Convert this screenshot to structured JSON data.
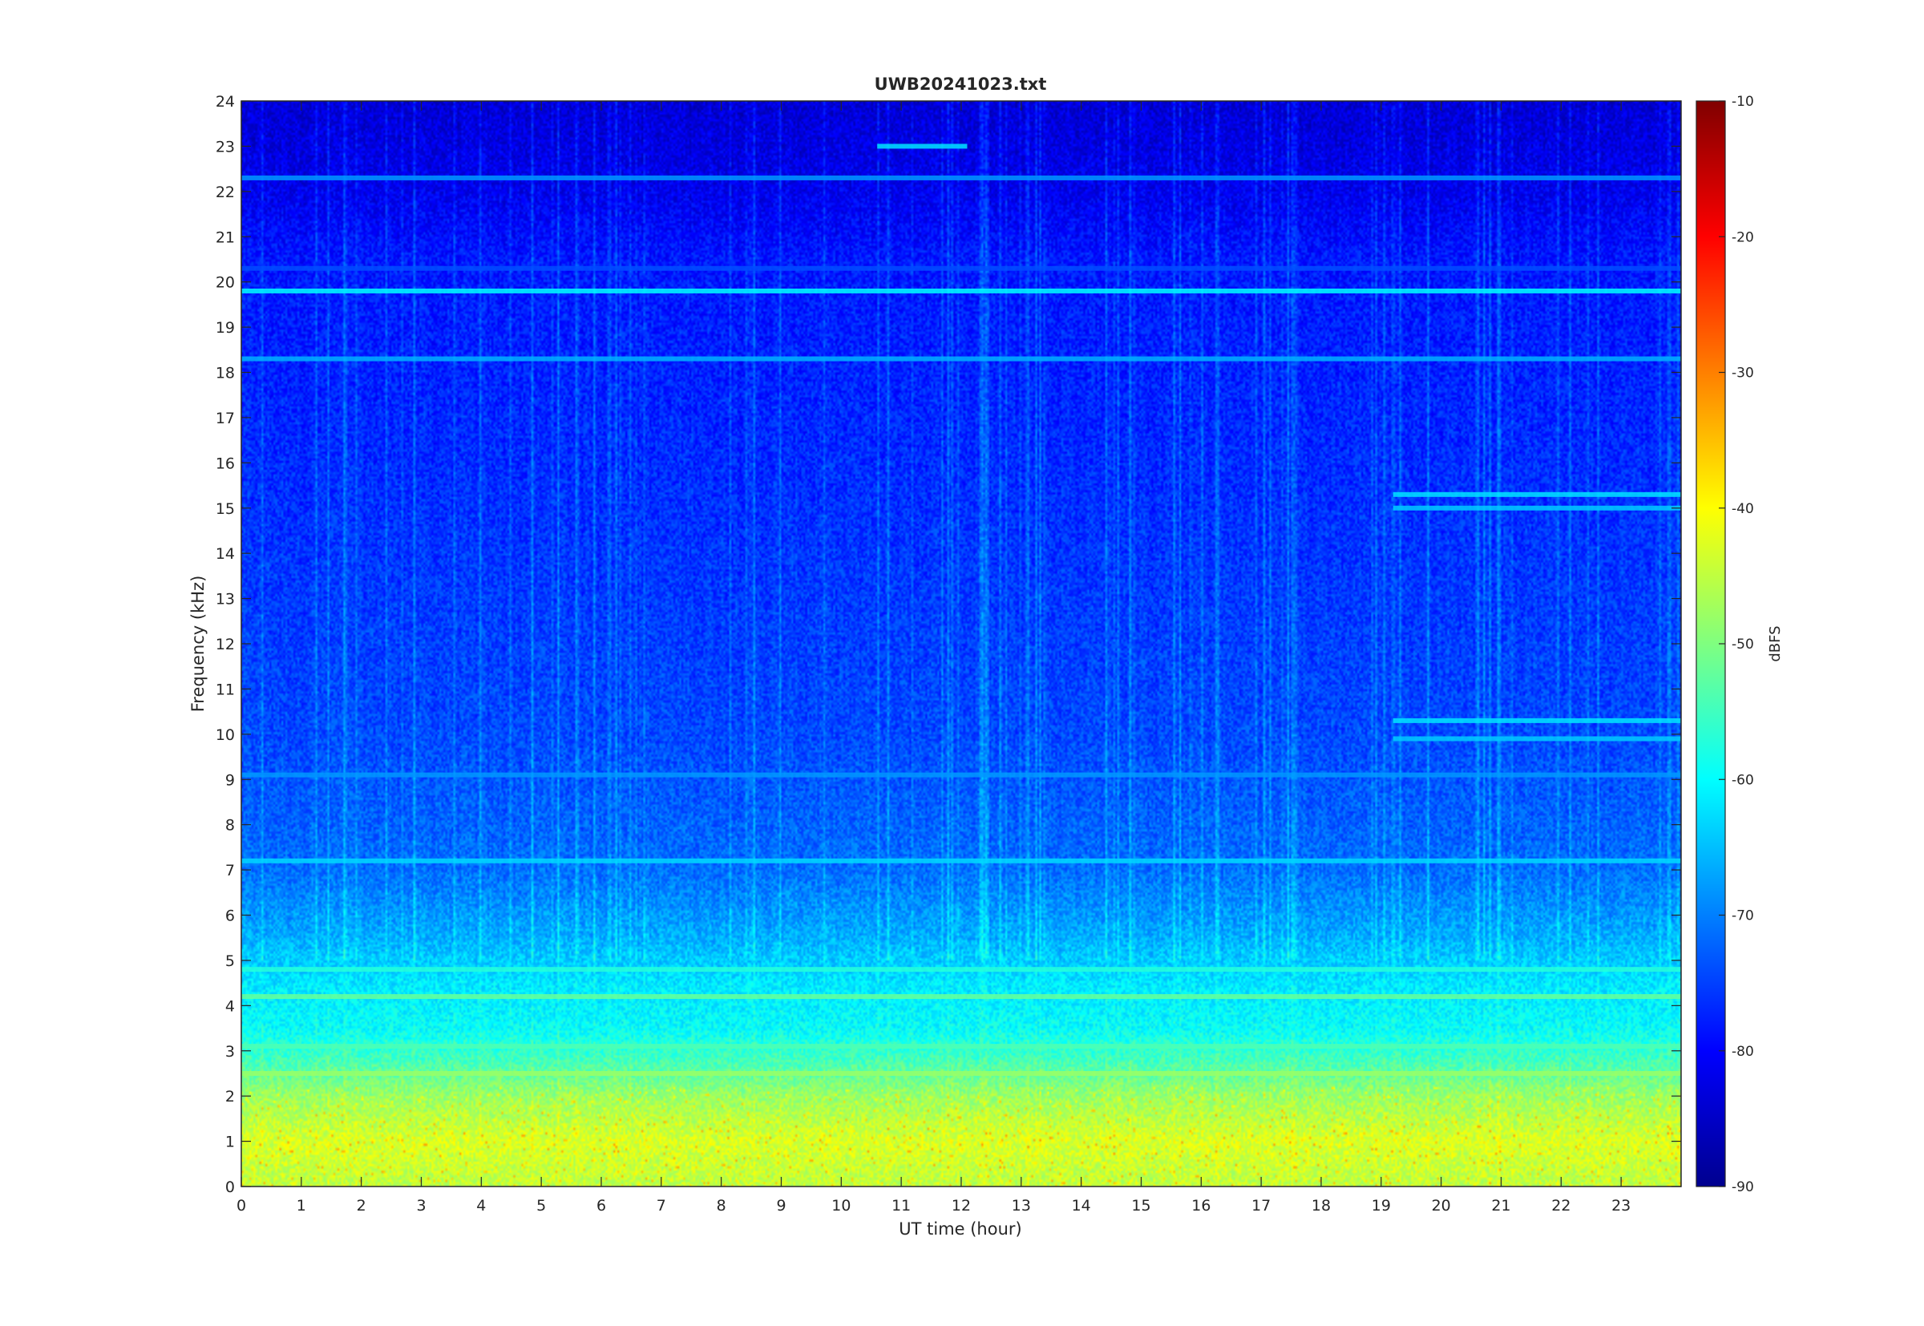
{
  "chart_data": {
    "type": "heatmap",
    "title": "UWB20241023.txt",
    "xlabel": "UT time (hour)",
    "ylabel": "Frequency (kHz)",
    "xlim": [
      0,
      24
    ],
    "ylim": [
      0,
      24
    ],
    "x_ticks": [
      0,
      1,
      2,
      3,
      4,
      5,
      6,
      7,
      8,
      9,
      10,
      11,
      12,
      13,
      14,
      15,
      16,
      17,
      18,
      19,
      20,
      21,
      22,
      23
    ],
    "y_ticks": [
      0,
      1,
      2,
      3,
      4,
      5,
      6,
      7,
      8,
      9,
      10,
      11,
      12,
      13,
      14,
      15,
      16,
      17,
      18,
      19,
      20,
      21,
      22,
      23,
      24
    ],
    "colorbar": {
      "label": "dBFS",
      "range": [
        -90,
        -10
      ],
      "ticks": [
        -90,
        -80,
        -70,
        -60,
        -50,
        -40,
        -30,
        -20,
        -10
      ],
      "colormap": "jet"
    },
    "background_profile_dbfs": [
      {
        "freq_khz": 0.2,
        "level": -45
      },
      {
        "freq_khz": 1.0,
        "level": -43
      },
      {
        "freq_khz": 2.0,
        "level": -48
      },
      {
        "freq_khz": 2.8,
        "level": -55
      },
      {
        "freq_khz": 3.5,
        "level": -60
      },
      {
        "freq_khz": 4.5,
        "level": -62
      },
      {
        "freq_khz": 5.5,
        "level": -67
      },
      {
        "freq_khz": 7.0,
        "level": -72
      },
      {
        "freq_khz": 10.0,
        "level": -75
      },
      {
        "freq_khz": 15.0,
        "level": -77
      },
      {
        "freq_khz": 20.5,
        "level": -79
      },
      {
        "freq_khz": 22.0,
        "level": -82
      },
      {
        "freq_khz": 24.0,
        "level": -84
      }
    ],
    "persistent_lines": [
      {
        "freq_khz": 19.8,
        "start_hour": 0,
        "end_hour": 24,
        "level": -60
      },
      {
        "freq_khz": 18.3,
        "start_hour": 0,
        "end_hour": 24,
        "level": -66
      },
      {
        "freq_khz": 22.3,
        "start_hour": 0,
        "end_hour": 24,
        "level": -68
      },
      {
        "freq_khz": 20.3,
        "start_hour": 0,
        "end_hour": 24,
        "level": -74
      },
      {
        "freq_khz": 4.8,
        "start_hour": 0,
        "end_hour": 24,
        "level": -57
      },
      {
        "freq_khz": 4.2,
        "start_hour": 0,
        "end_hour": 24,
        "level": -52
      },
      {
        "freq_khz": 3.1,
        "start_hour": 0,
        "end_hour": 24,
        "level": -54
      },
      {
        "freq_khz": 2.5,
        "start_hour": 0,
        "end_hour": 24,
        "level": -48
      },
      {
        "freq_khz": 7.2,
        "start_hour": 0,
        "end_hour": 24,
        "level": -63
      },
      {
        "freq_khz": 9.1,
        "start_hour": 0,
        "end_hour": 24,
        "level": -68
      },
      {
        "freq_khz": 23.0,
        "start_hour": 10.6,
        "end_hour": 12.1,
        "level": -62
      },
      {
        "freq_khz": 15.3,
        "start_hour": 19.2,
        "end_hour": 24,
        "level": -62
      },
      {
        "freq_khz": 15.0,
        "start_hour": 19.2,
        "end_hour": 24,
        "level": -64
      },
      {
        "freq_khz": 10.3,
        "start_hour": 19.2,
        "end_hour": 24,
        "level": -62
      },
      {
        "freq_khz": 9.9,
        "start_hour": 19.2,
        "end_hour": 24,
        "level": -64
      }
    ]
  }
}
